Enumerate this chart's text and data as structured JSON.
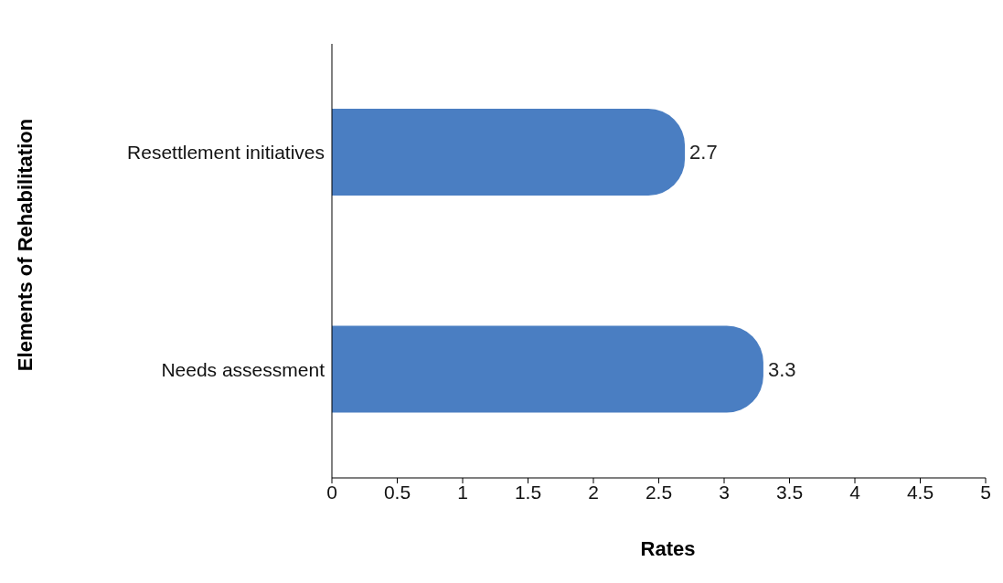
{
  "chart_data": {
    "type": "bar",
    "orientation": "horizontal",
    "xlabel": "Rates",
    "ylabel": "Elements of Rehabilitation",
    "categories": [
      "Resettlement initiatives",
      "Needs assessment"
    ],
    "values": [
      2.7,
      3.3
    ],
    "color": "#4a7ec2",
    "xlim": [
      0,
      5
    ],
    "xticks": [
      0,
      0.5,
      1,
      1.5,
      2,
      2.5,
      3,
      3.5,
      4,
      4.5,
      5
    ],
    "data_labels": true
  }
}
